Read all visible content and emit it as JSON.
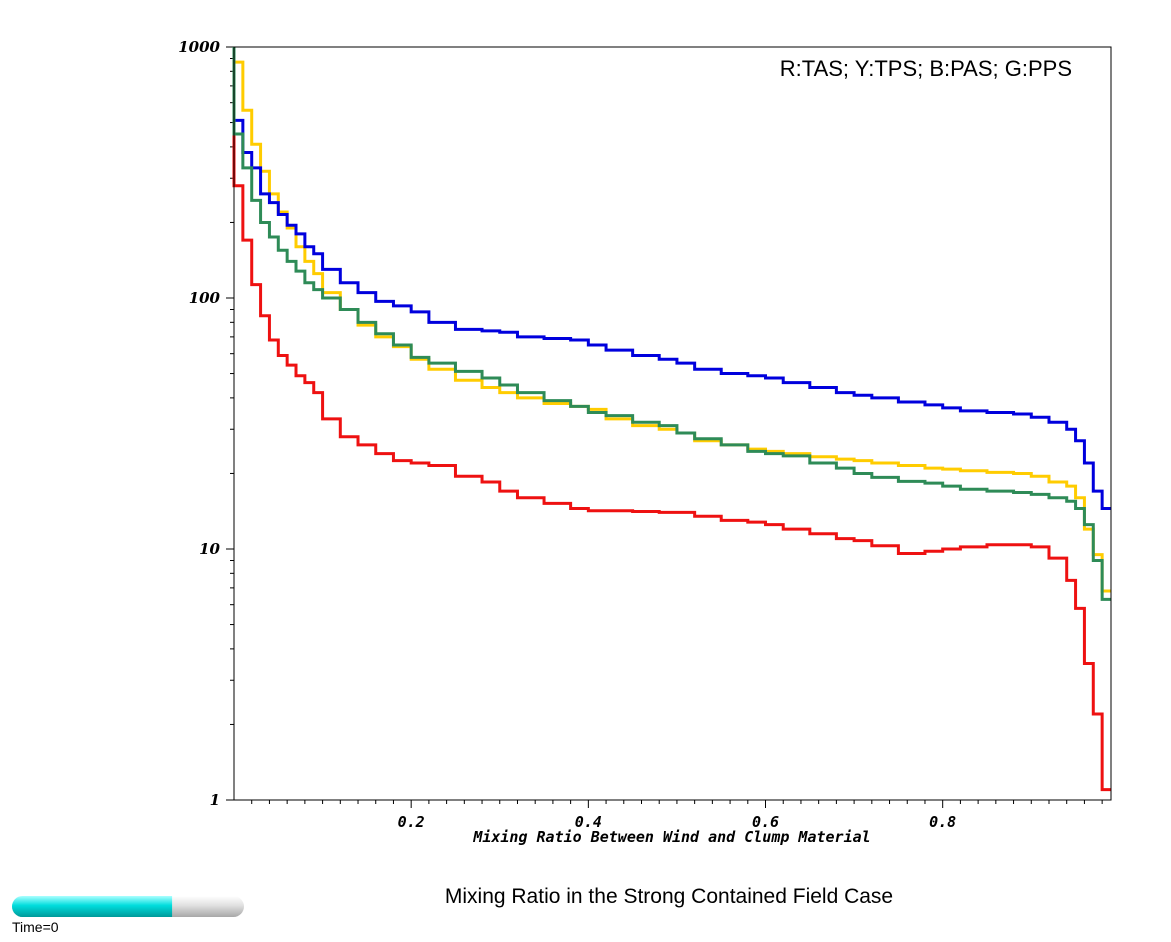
{
  "caption": "Mixing Ratio in the Strong Contained Field Case",
  "time_label": "Time=0",
  "time_progress": 0.69,
  "colors": {
    "red": "#ee1111",
    "yellow": "#ffcc00",
    "blue": "#0000dd",
    "green": "#2e8b57",
    "progress_fill": "#00dddd",
    "progress_empty": "#d0d0d0"
  },
  "chart_data": {
    "type": "line",
    "step": true,
    "title": "",
    "xlabel": "Mixing Ratio Between Wind and Clump Material",
    "ylabel": "",
    "legend_text": "R:TAS; Y:TPS; B:PAS; G:PPS",
    "legend_position": "top-right",
    "xlim": [
      0,
      0.99
    ],
    "ylim": [
      1,
      1000
    ],
    "yscale": "log",
    "grid": false,
    "x_ticks": [
      0.2,
      0.4,
      0.6,
      0.8
    ],
    "x_tick_labels": [
      "0.2",
      "0.4",
      "0.6",
      "0.8"
    ],
    "y_ticks": [
      1,
      10,
      100,
      1000
    ],
    "y_tick_labels": [
      "1",
      "10",
      "100",
      "1000"
    ],
    "x": [
      0.01,
      0.02,
      0.03,
      0.04,
      0.05,
      0.06,
      0.07,
      0.08,
      0.09,
      0.1,
      0.12,
      0.14,
      0.16,
      0.18,
      0.2,
      0.22,
      0.25,
      0.28,
      0.3,
      0.32,
      0.35,
      0.38,
      0.4,
      0.42,
      0.45,
      0.48,
      0.5,
      0.52,
      0.55,
      0.58,
      0.6,
      0.62,
      0.65,
      0.68,
      0.7,
      0.72,
      0.75,
      0.78,
      0.8,
      0.82,
      0.85,
      0.88,
      0.9,
      0.92,
      0.94,
      0.95,
      0.96,
      0.97,
      0.98,
      0.99
    ],
    "series": [
      {
        "name": "TAS",
        "color": "#ee1111",
        "values": [
          280,
          170,
          113,
          85,
          68,
          59,
          54,
          49,
          46,
          42,
          33,
          28,
          26,
          24,
          22.5,
          22,
          21.5,
          19.5,
          18.5,
          17,
          16,
          15.2,
          14.5,
          14.2,
          14.2,
          14.1,
          14,
          14,
          13.5,
          13,
          12.8,
          12.5,
          12,
          11.5,
          11,
          10.8,
          10.3,
          9.6,
          9.8,
          10,
          10.2,
          10.4,
          10.4,
          10.2,
          9.2,
          7.5,
          5.8,
          3.5,
          2.2,
          1.1
        ]
      },
      {
        "name": "TPS",
        "color": "#ffcc00",
        "values": [
          870,
          560,
          410,
          320,
          260,
          220,
          190,
          160,
          140,
          125,
          105,
          90,
          78,
          70,
          64,
          57,
          52,
          47,
          44,
          42,
          40,
          38,
          37,
          36,
          33,
          31,
          30,
          29,
          27,
          26,
          25,
          24.5,
          24,
          23.3,
          22.8,
          22.5,
          22,
          21.5,
          21,
          20.8,
          20.5,
          20.2,
          20,
          19.5,
          18.5,
          17.8,
          16,
          12,
          9.5,
          6.8
        ]
      },
      {
        "name": "PAS",
        "color": "#0000dd",
        "values": [
          510,
          380,
          330,
          260,
          240,
          215,
          195,
          180,
          160,
          150,
          130,
          115,
          105,
          97,
          93,
          88,
          80,
          75,
          74,
          73,
          70,
          69,
          68,
          65,
          62,
          59,
          57,
          55,
          52,
          50,
          49,
          48,
          46,
          44,
          42,
          41,
          40,
          38.5,
          37.5,
          36.5,
          35.5,
          35,
          34.5,
          33.5,
          32,
          30,
          27,
          22,
          17,
          14.5
        ]
      },
      {
        "name": "PPS",
        "color": "#2e8b57",
        "values": [
          450,
          330,
          245,
          200,
          175,
          155,
          140,
          128,
          115,
          108,
          100,
          90,
          80,
          72,
          65,
          58,
          55,
          51,
          48,
          45,
          42,
          39,
          37,
          35,
          34,
          32,
          31,
          29,
          27.5,
          26,
          24.5,
          24,
          23.5,
          22,
          21,
          20,
          19.3,
          18.6,
          18.3,
          17.8,
          17.3,
          17,
          16.8,
          16.5,
          16,
          15.5,
          14.5,
          12.5,
          9,
          6.3
        ]
      }
    ]
  }
}
